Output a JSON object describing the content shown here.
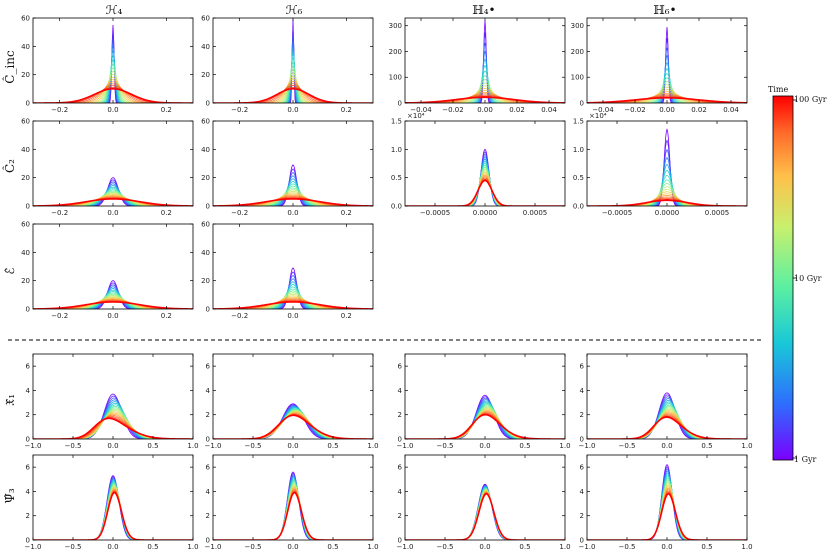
{
  "figure": {
    "column_titles": [
      "ℋ₄",
      "ℋ₆",
      "ℍ₄•",
      "ℍ₆•"
    ],
    "row_labels": [
      "Ĉ_inc",
      "Ĉ₂",
      "ℰ̂",
      "𝔛̂₁",
      "Ψ̂₃"
    ],
    "colorbar": {
      "title": "Time",
      "labels": [
        "100 Gyr",
        "10 Gyr",
        "1 Gyr"
      ],
      "scale": "log",
      "range": [
        1,
        100
      ],
      "colors": [
        "#7a00ff",
        "#2f6bff",
        "#19c8d8",
        "#5ef0a0",
        "#c8f06e",
        "#ffc04a",
        "#ff6a2a",
        "#ff0000"
      ]
    },
    "separator": "dashed line between the third and fourth rows"
  },
  "chart_data": [
    {
      "type": "line",
      "panel": "r0c0",
      "xlim": [
        -0.3,
        0.3
      ],
      "ylim": [
        0,
        60
      ],
      "xticks": [
        "−0.2",
        "0.0",
        "0.2"
      ],
      "yticks": [
        "0",
        "20",
        "40",
        "60"
      ],
      "sigma_first": 0.004,
      "sigma_last": 0.07,
      "peak_first": 55,
      "peak_last": 10,
      "skew_first": 0,
      "skew_last": 0,
      "curves": 18
    },
    {
      "type": "line",
      "panel": "r0c1",
      "xlim": [
        -0.3,
        0.3
      ],
      "ylim": [
        0,
        60
      ],
      "xticks": [
        "−0.2",
        "0.0",
        "0.2"
      ],
      "yticks": [
        "0",
        "20",
        "40",
        "60"
      ],
      "sigma_first": 0.003,
      "sigma_last": 0.06,
      "peak_first": 59,
      "peak_last": 10,
      "skew_first": 0,
      "skew_last": 0,
      "curves": 18
    },
    {
      "type": "line",
      "panel": "r0c2",
      "xlim": [
        -0.05,
        0.05
      ],
      "ylim": [
        0,
        330
      ],
      "xticks": [
        "−0.04",
        "−0.02",
        "0.00",
        "0.02",
        "0.04"
      ],
      "yticks": [
        "0",
        "100",
        "200",
        "300"
      ],
      "sigma_first": 0.0008,
      "sigma_last": 0.018,
      "peak_first": 320,
      "peak_last": 22,
      "skew_first": 0,
      "skew_last": 0,
      "curves": 18
    },
    {
      "type": "line",
      "panel": "r0c3",
      "xlim": [
        -0.05,
        0.05
      ],
      "ylim": [
        0,
        330
      ],
      "xticks": [
        "−0.04",
        "−0.02",
        "0.00",
        "0.02",
        "0.04"
      ],
      "yticks": [
        "0",
        "100",
        "200",
        "300"
      ],
      "sigma_first": 0.0008,
      "sigma_last": 0.02,
      "peak_first": 295,
      "peak_last": 20,
      "skew_first": 0,
      "skew_last": 0,
      "curves": 18
    },
    {
      "type": "line",
      "panel": "r1c0",
      "xlim": [
        -0.3,
        0.3
      ],
      "ylim": [
        0,
        60
      ],
      "xticks": [
        "−0.2",
        "0.0",
        "0.2"
      ],
      "yticks": [
        "0",
        "20",
        "40",
        "60"
      ],
      "sigma_first": 0.02,
      "sigma_last": 0.1,
      "peak_first": 20,
      "peak_last": 5,
      "skew_first": 0,
      "skew_last": 0,
      "curves": 18
    },
    {
      "type": "line",
      "panel": "r1c1",
      "xlim": [
        -0.3,
        0.3
      ],
      "ylim": [
        0,
        60
      ],
      "xticks": [
        "−0.2",
        "0.0",
        "0.2"
      ],
      "yticks": [
        "0",
        "20",
        "40",
        "60"
      ],
      "sigma_first": 0.014,
      "sigma_last": 0.1,
      "peak_first": 29,
      "peak_last": 5,
      "skew_first": 0,
      "skew_last": 0,
      "curves": 18
    },
    {
      "type": "line",
      "panel": "r1c2",
      "xlim": [
        -0.0008,
        0.0008
      ],
      "ylim": [
        0,
        15000
      ],
      "xticks": [
        "−0.0005",
        "0.0000",
        "0.0005"
      ],
      "yticks": [
        "0.0",
        "0.5",
        "1.0",
        "1.5"
      ],
      "exponent": "×10⁴",
      "sigma_first": 4e-05,
      "sigma_last": 7e-05,
      "peak_first": 10000,
      "peak_last": 4500,
      "skew_first": 0,
      "skew_last": 0,
      "curves": 18
    },
    {
      "type": "line",
      "panel": "r1c3",
      "xlim": [
        -0.0008,
        0.0008
      ],
      "ylim": [
        0,
        15000
      ],
      "xticks": [
        "−0.0005",
        "0.0000",
        "0.0005"
      ],
      "yticks": [
        "0.0",
        "0.5",
        "1.0",
        "1.5"
      ],
      "exponent": "×10⁴",
      "sigma_first": 2.8e-05,
      "sigma_last": 0.0002,
      "peak_first": 13500,
      "peak_last": 1000,
      "skew_first": 0,
      "skew_last": 0,
      "curves": 18
    },
    {
      "type": "line",
      "panel": "r2c0",
      "xlim": [
        -0.3,
        0.3
      ],
      "ylim": [
        0,
        60
      ],
      "xticks": [
        "−0.2",
        "0.0",
        "0.2"
      ],
      "yticks": [
        "0",
        "20",
        "40",
        "60"
      ],
      "sigma_first": 0.02,
      "sigma_last": 0.1,
      "peak_first": 20,
      "peak_last": 5,
      "skew_first": 0,
      "skew_last": 0,
      "curves": 18
    },
    {
      "type": "line",
      "panel": "r2c1",
      "xlim": [
        -0.3,
        0.3
      ],
      "ylim": [
        0,
        60
      ],
      "xticks": [
        "−0.2",
        "0.0",
        "0.2"
      ],
      "yticks": [
        "0",
        "20",
        "40",
        "60"
      ],
      "sigma_first": 0.014,
      "sigma_last": 0.1,
      "peak_first": 29,
      "peak_last": 5,
      "skew_first": 0,
      "skew_last": 0,
      "curves": 18
    },
    {
      "type": "line",
      "panel": "r3c0",
      "xlim": [
        -1,
        1
      ],
      "ylim": [
        0,
        7
      ],
      "xticks": [
        "−1.0",
        "−0.5",
        "0.0",
        "0.5",
        "1.0"
      ],
      "yticks": [
        "0",
        "2",
        "4",
        "6"
      ],
      "sigma_first": 0.11,
      "sigma_last": 0.3,
      "peak_first": 3.7,
      "peak_last": 1.7,
      "skew_first": 0,
      "skew_last": 2,
      "curves": 18
    },
    {
      "type": "line",
      "panel": "r3c1",
      "xlim": [
        -1,
        1
      ],
      "ylim": [
        0,
        7
      ],
      "xticks": [
        "−1.0",
        "−0.5",
        "0.0",
        "0.5",
        "1.0"
      ],
      "yticks": [
        "0",
        "2",
        "4",
        "6"
      ],
      "sigma_first": 0.13,
      "sigma_last": 0.27,
      "peak_first": 2.9,
      "peak_last": 1.95,
      "skew_first": 0,
      "skew_last": 1.5,
      "curves": 18
    },
    {
      "type": "line",
      "panel": "r3c2",
      "xlim": [
        -1,
        1
      ],
      "ylim": [
        0,
        7
      ],
      "xticks": [
        "−1.0",
        "−0.5",
        "0.0",
        "0.5",
        "1.0"
      ],
      "yticks": [
        "0",
        "2",
        "4",
        "6"
      ],
      "sigma_first": 0.11,
      "sigma_last": 0.24,
      "peak_first": 3.6,
      "peak_last": 2.0,
      "skew_first": 0,
      "skew_last": 1.5,
      "curves": 18
    },
    {
      "type": "line",
      "panel": "r3c3",
      "xlim": [
        -1,
        1
      ],
      "ylim": [
        0,
        7
      ],
      "xticks": [
        "−1.0",
        "−0.5",
        "0.0",
        "0.5",
        "1.0"
      ],
      "yticks": [
        "0",
        "2",
        "4",
        "6"
      ],
      "sigma_first": 0.1,
      "sigma_last": 0.24,
      "peak_first": 3.8,
      "peak_last": 1.8,
      "skew_first": 0,
      "skew_last": 1.6,
      "curves": 18
    },
    {
      "type": "line",
      "panel": "r4c0",
      "xlim": [
        -1,
        1
      ],
      "ylim": [
        0,
        7
      ],
      "xticks": [
        "−1.0",
        "−0.5",
        "0.0",
        "0.5",
        "1.0"
      ],
      "yticks": [
        "0",
        "2",
        "4",
        "6"
      ],
      "sigma_first": 0.075,
      "sigma_last": 0.1,
      "peak_first": 5.3,
      "peak_last": 3.9,
      "skew_first": 0,
      "skew_last": 0.8,
      "curves": 18
    },
    {
      "type": "line",
      "panel": "r4c1",
      "xlim": [
        -1,
        1
      ],
      "ylim": [
        0,
        7
      ],
      "xticks": [
        "−1.0",
        "−0.5",
        "0.0",
        "0.5",
        "1.0"
      ],
      "yticks": [
        "0",
        "2",
        "4",
        "6"
      ],
      "sigma_first": 0.07,
      "sigma_last": 0.1,
      "peak_first": 5.6,
      "peak_last": 3.9,
      "skew_first": 0,
      "skew_last": 0.8,
      "curves": 18
    },
    {
      "type": "line",
      "panel": "r4c2",
      "xlim": [
        -1,
        1
      ],
      "ylim": [
        0,
        7
      ],
      "xticks": [
        "−1.0",
        "−0.5",
        "0.0",
        "0.5",
        "1.0"
      ],
      "yticks": [
        "0",
        "2",
        "4",
        "6"
      ],
      "sigma_first": 0.085,
      "sigma_last": 0.1,
      "peak_first": 4.6,
      "peak_last": 3.8,
      "skew_first": 0,
      "skew_last": 0.5,
      "curves": 18
    },
    {
      "type": "line",
      "panel": "r4c3",
      "xlim": [
        -1,
        1
      ],
      "ylim": [
        0,
        7
      ],
      "xticks": [
        "−1.0",
        "−0.5",
        "0.0",
        "0.5",
        "1.0"
      ],
      "yticks": [
        "0",
        "2",
        "4",
        "6"
      ],
      "sigma_first": 0.065,
      "sigma_last": 0.1,
      "peak_first": 6.2,
      "peak_last": 3.8,
      "skew_first": 0,
      "skew_last": 0.8,
      "curves": 18
    }
  ]
}
